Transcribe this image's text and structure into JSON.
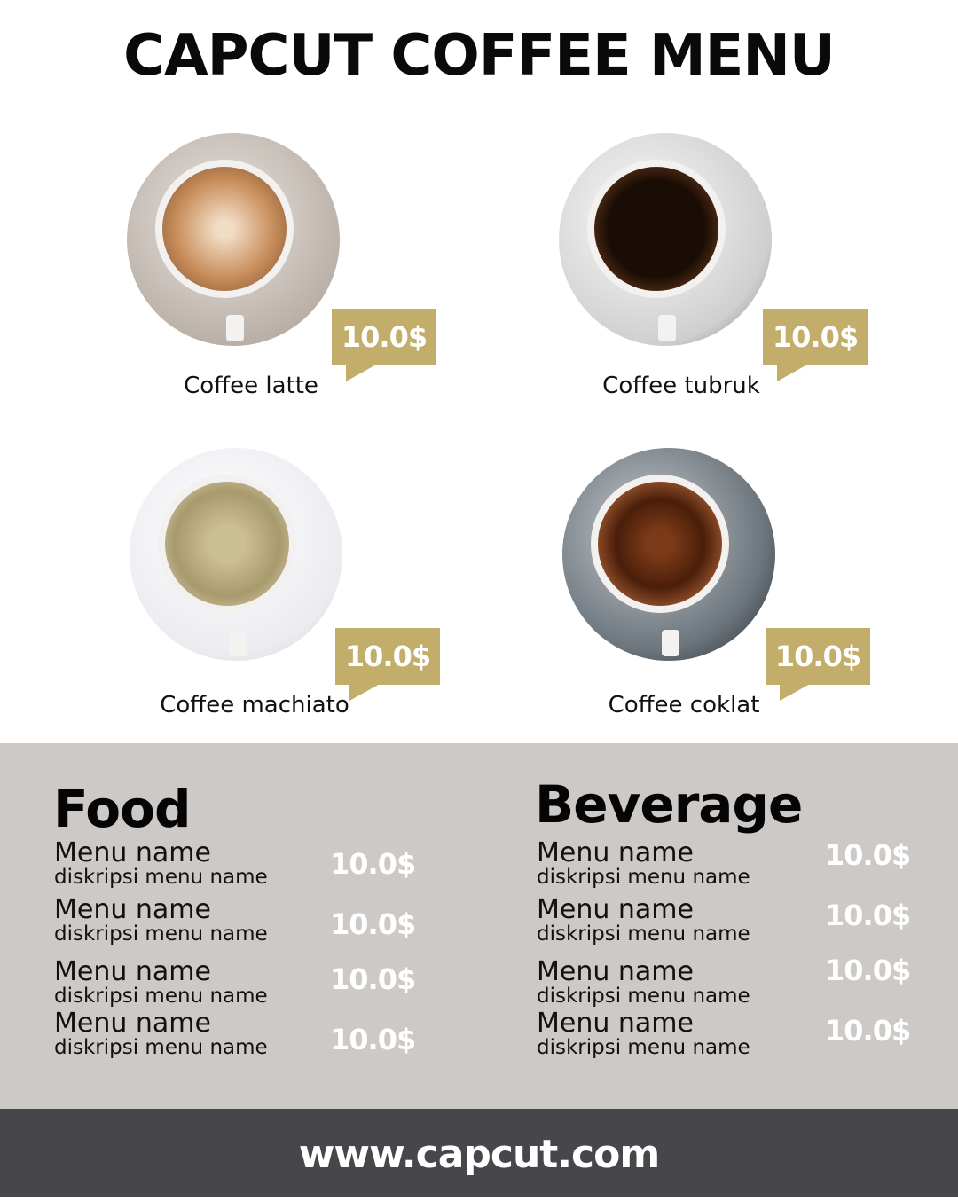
{
  "title": "CAPCUT COFFEE MENU",
  "colors": {
    "accent": "#c2ad6a",
    "band": "#ccc9c6",
    "footer": "#47464b"
  },
  "featured": [
    {
      "name": "Coffee latte",
      "price": "10.0$"
    },
    {
      "name": "Coffee tubruk",
      "price": "10.0$"
    },
    {
      "name": "Coffee machiato",
      "price": "10.0$"
    },
    {
      "name": "Coffee coklat",
      "price": "10.0$"
    }
  ],
  "food": {
    "title": "Food",
    "items": [
      {
        "name": "Menu name",
        "desc": "diskripsi menu name",
        "price": "10.0$"
      },
      {
        "name": "Menu name",
        "desc": "diskripsi menu name",
        "price": "10.0$"
      },
      {
        "name": "Menu name",
        "desc": "diskripsi menu name",
        "price": "10.0$"
      },
      {
        "name": "Menu name",
        "desc": "diskripsi menu name",
        "price": "10.0$"
      }
    ]
  },
  "beverage": {
    "title": "Beverage",
    "items": [
      {
        "name": "Menu name",
        "desc": "diskripsi menu name",
        "price": "10.0$"
      },
      {
        "name": "Menu name",
        "desc": "diskripsi menu name",
        "price": "10.0$"
      },
      {
        "name": "Menu name",
        "desc": "diskripsi menu name",
        "price": "10.0$"
      },
      {
        "name": "Menu name",
        "desc": "diskripsi menu name",
        "price": "10.0$"
      }
    ]
  },
  "footer": {
    "url": "www.capcut.com"
  }
}
